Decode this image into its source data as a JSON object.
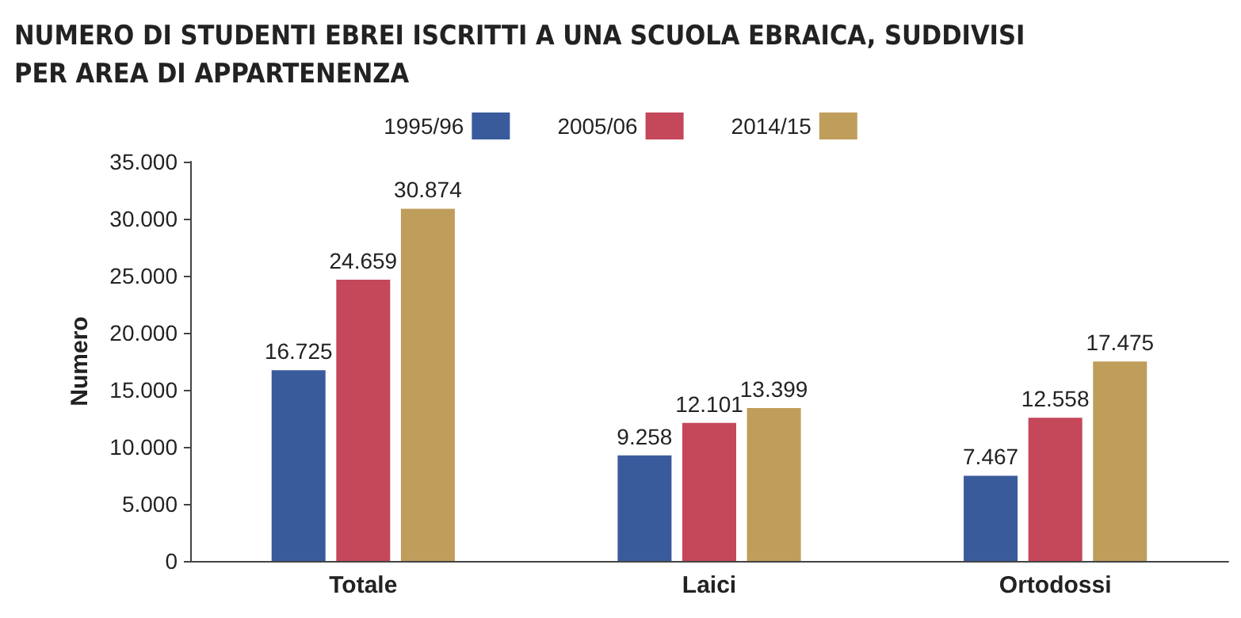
{
  "chart_data": {
    "type": "bar",
    "title": "NUMERO DI STUDENTI EBREI ISCRITTI A UNA SCUOLA EBRAICA, SUDDIVISI\nPER AREA DI APPARTENENZA",
    "ylabel": "Numero",
    "categories": [
      "Totale",
      "Laici",
      "Ortodossi"
    ],
    "series": [
      {
        "name": "1995/96",
        "color": "#3a5b9b",
        "values": [
          16725,
          9258,
          7467
        ],
        "value_labels": [
          "16.725",
          "9.258",
          "7.467"
        ]
      },
      {
        "name": "2005/06",
        "color": "#c4475a",
        "values": [
          24659,
          12101,
          12558
        ],
        "value_labels": [
          "24.659",
          "12.101",
          "12.558"
        ]
      },
      {
        "name": "2014/15",
        "color": "#bf9d5b",
        "values": [
          30874,
          13399,
          17475
        ],
        "value_labels": [
          "30.874",
          "13.399",
          "17.475"
        ]
      }
    ],
    "ylim": [
      0,
      35000
    ],
    "yticks": [
      0,
      {
        "value": 5000,
        "label": "5.000"
      },
      {
        "value": 10000,
        "label": "10.000"
      },
      {
        "value": 15000,
        "label": "15.000"
      },
      {
        "value": 20000,
        "label": "20.000"
      },
      {
        "value": 25000,
        "label": "25.000"
      },
      {
        "value": 30000,
        "label": "30.000"
      },
      {
        "value": 35000,
        "label": "35.000"
      }
    ],
    "grid": false,
    "legend": "top"
  }
}
